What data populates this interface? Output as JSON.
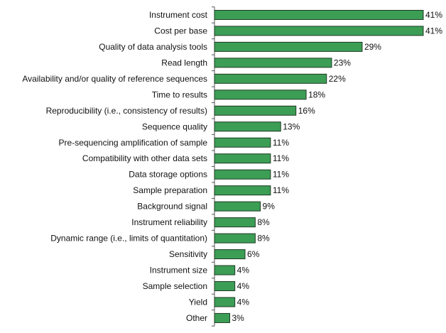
{
  "chart_data": {
    "type": "bar",
    "orientation": "horizontal",
    "title": "",
    "xlabel": "",
    "ylabel": "",
    "xlim": [
      0,
      41
    ],
    "grid": false,
    "bar_color": "#3c9e55",
    "bar_edge_color": "#1e3a25",
    "value_suffix": "%",
    "categories": [
      "Instrument cost",
      "Cost per base",
      "Quality of data analysis tools",
      "Read length",
      "Availability and/or quality of reference sequences",
      "Time to results",
      "Reproducibility (i.e., consistency of results)",
      "Sequence quality",
      "Pre-sequencing amplification of sample",
      "Compatibility with other data sets",
      "Data storage options",
      "Sample preparation",
      "Background signal",
      "Instrument reliability",
      "Dynamic range (i.e., limits of quantitation)",
      "Sensitivity",
      "Instrument size",
      "Sample selection",
      "Yield",
      "Other"
    ],
    "values": [
      41,
      41,
      29,
      23,
      22,
      18,
      16,
      13,
      11,
      11,
      11,
      11,
      9,
      8,
      8,
      6,
      4,
      4,
      4,
      3
    ],
    "value_labels": [
      "41%",
      "41%",
      "29%",
      "23%",
      "22%",
      "18%",
      "16%",
      "13%",
      "11%",
      "11%",
      "11%",
      "11%",
      "9%",
      "8%",
      "8%",
      "6%",
      "4%",
      "4%",
      "4%",
      "3%"
    ]
  }
}
